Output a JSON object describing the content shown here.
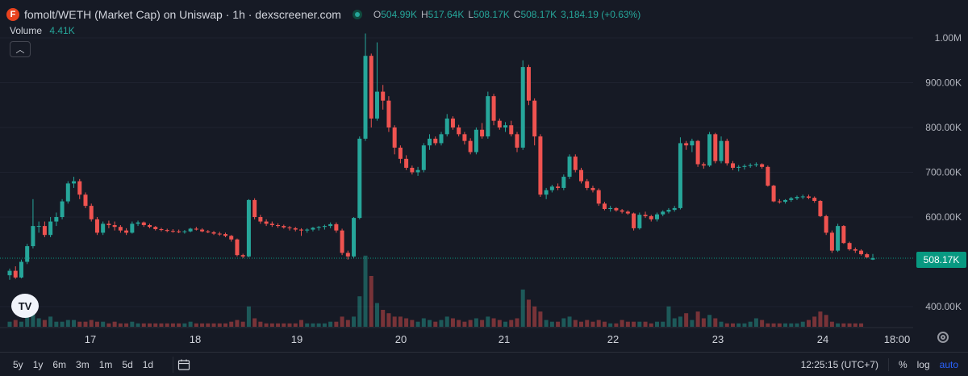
{
  "legend": {
    "pair_title": "fomolt/WETH (Market Cap) on Uniswap · 1h · dexscreener.com",
    "ohlc": {
      "o_label": "O",
      "o_value": "504.99K",
      "h_label": "H",
      "h_value": "517.64K",
      "l_label": "L",
      "l_value": "508.17K",
      "c_label": "C",
      "c_value": "508.17K",
      "change": "3,184.19 (+0.63%)"
    },
    "volume_label": "Volume",
    "volume_value": "4.41K",
    "collapse_icon": "chevron-up-icon",
    "logo_icon": "fomolt-logo-icon"
  },
  "price_axis": {
    "ticks": [
      "1.00M",
      "900.00K",
      "800.00K",
      "700.00K",
      "600.00K",
      "400.00K"
    ],
    "last_price_label": "508.17K"
  },
  "time_axis": {
    "ticks": [
      "17",
      "18",
      "19",
      "20",
      "21",
      "22",
      "23",
      "24",
      "18:00"
    ]
  },
  "bottom_bar": {
    "ranges": [
      "5y",
      "1y",
      "6m",
      "3m",
      "1m",
      "5d",
      "1d"
    ],
    "clock": "12:25:15 (UTC+7)",
    "percent": "%",
    "log": "log",
    "auto": "auto",
    "calendar_icon": "calendar-range-icon"
  },
  "colors": {
    "up": "#26a69a",
    "down": "#ef5350",
    "background": "#161a25",
    "grid": "#1f2330",
    "last_price": "#089981"
  },
  "chart_data": {
    "type": "candlestick",
    "title": "fomolt/WETH (Market Cap) on Uniswap · 1h · dexscreener.com",
    "interval": "1h",
    "y_unit": "market cap (USD)",
    "ylim": [
      370000,
      1030000
    ],
    "x_day_ticks": [
      "17",
      "18",
      "19",
      "20",
      "21",
      "22",
      "23",
      "24",
      "18:00"
    ],
    "last_close": 508170,
    "candles": [
      [
        470000,
        485000,
        460000,
        480000
      ],
      [
        480000,
        490000,
        462000,
        465000
      ],
      [
        465000,
        505000,
        463000,
        500000
      ],
      [
        500000,
        540000,
        495000,
        535000
      ],
      [
        535000,
        640000,
        530000,
        580000
      ],
      [
        580000,
        590000,
        565000,
        580000
      ],
      [
        580000,
        590000,
        555000,
        560000
      ],
      [
        560000,
        600000,
        555000,
        590000
      ],
      [
        590000,
        610000,
        580000,
        600000
      ],
      [
        600000,
        640000,
        595000,
        635000
      ],
      [
        635000,
        680000,
        630000,
        675000
      ],
      [
        675000,
        690000,
        665000,
        680000
      ],
      [
        680000,
        685000,
        640000,
        650000
      ],
      [
        650000,
        655000,
        620000,
        625000
      ],
      [
        625000,
        630000,
        590000,
        595000
      ],
      [
        595000,
        600000,
        560000,
        565000
      ],
      [
        565000,
        590000,
        560000,
        585000
      ],
      [
        585000,
        592000,
        575000,
        582000
      ],
      [
        582000,
        590000,
        570000,
        578000
      ],
      [
        578000,
        582000,
        565000,
        570000
      ],
      [
        570000,
        575000,
        560000,
        565000
      ],
      [
        565000,
        590000,
        563000,
        585000
      ],
      [
        585000,
        592000,
        580000,
        588000
      ],
      [
        588000,
        590000,
        578000,
        582000
      ],
      [
        582000,
        585000,
        575000,
        578000
      ],
      [
        578000,
        580000,
        570000,
        573000
      ],
      [
        573000,
        576000,
        568000,
        571000
      ],
      [
        571000,
        574000,
        566000,
        569000
      ],
      [
        569000,
        573000,
        565000,
        568000
      ],
      [
        568000,
        572000,
        564000,
        567000
      ],
      [
        567000,
        571000,
        563000,
        568000
      ],
      [
        568000,
        576000,
        566000,
        574000
      ],
      [
        574000,
        578000,
        570000,
        572000
      ],
      [
        572000,
        575000,
        566000,
        568000
      ],
      [
        568000,
        571000,
        564000,
        566000
      ],
      [
        566000,
        569000,
        560000,
        563000
      ],
      [
        563000,
        567000,
        558000,
        562000
      ],
      [
        562000,
        565000,
        555000,
        558000
      ],
      [
        558000,
        560000,
        545000,
        550000
      ],
      [
        550000,
        552000,
        512000,
        515000
      ],
      [
        515000,
        518000,
        508000,
        512000
      ],
      [
        512000,
        640000,
        510000,
        638000
      ],
      [
        638000,
        642000,
        595000,
        600000
      ],
      [
        600000,
        605000,
        585000,
        590000
      ],
      [
        590000,
        595000,
        580000,
        585000
      ],
      [
        585000,
        590000,
        578000,
        582000
      ],
      [
        582000,
        586000,
        576000,
        580000
      ],
      [
        580000,
        583000,
        574000,
        577000
      ],
      [
        577000,
        580000,
        570000,
        575000
      ],
      [
        575000,
        578000,
        568000,
        572000
      ],
      [
        572000,
        575000,
        558000,
        570000
      ],
      [
        570000,
        575000,
        565000,
        572000
      ],
      [
        572000,
        578000,
        568000,
        576000
      ],
      [
        576000,
        580000,
        570000,
        578000
      ],
      [
        578000,
        583000,
        572000,
        580000
      ],
      [
        580000,
        588000,
        575000,
        584000
      ],
      [
        584000,
        588000,
        565000,
        570000
      ],
      [
        570000,
        574000,
        515000,
        520000
      ],
      [
        520000,
        525000,
        505000,
        512000
      ],
      [
        512000,
        600000,
        508000,
        598000
      ],
      [
        598000,
        780000,
        595000,
        775000
      ],
      [
        775000,
        1010000,
        770000,
        960000
      ],
      [
        960000,
        965000,
        800000,
        820000
      ],
      [
        820000,
        990000,
        815000,
        880000
      ],
      [
        880000,
        895000,
        840000,
        860000
      ],
      [
        860000,
        870000,
        790000,
        800000
      ],
      [
        800000,
        805000,
        740000,
        755000
      ],
      [
        755000,
        760000,
        720000,
        730000
      ],
      [
        730000,
        738000,
        705000,
        710000
      ],
      [
        710000,
        715000,
        695000,
        700000
      ],
      [
        700000,
        712000,
        692000,
        705000
      ],
      [
        705000,
        765000,
        700000,
        760000
      ],
      [
        760000,
        785000,
        750000,
        775000
      ],
      [
        775000,
        780000,
        760000,
        765000
      ],
      [
        765000,
        790000,
        760000,
        785000
      ],
      [
        785000,
        830000,
        780000,
        820000
      ],
      [
        820000,
        825000,
        795000,
        800000
      ],
      [
        800000,
        806000,
        780000,
        785000
      ],
      [
        785000,
        790000,
        762000,
        770000
      ],
      [
        770000,
        776000,
        740000,
        745000
      ],
      [
        745000,
        800000,
        740000,
        795000
      ],
      [
        795000,
        810000,
        775000,
        780000
      ],
      [
        780000,
        880000,
        775000,
        870000
      ],
      [
        870000,
        875000,
        805000,
        815000
      ],
      [
        815000,
        820000,
        795000,
        800000
      ],
      [
        800000,
        812000,
        790000,
        805000
      ],
      [
        805000,
        815000,
        780000,
        785000
      ],
      [
        785000,
        790000,
        745000,
        755000
      ],
      [
        755000,
        950000,
        750000,
        935000
      ],
      [
        935000,
        940000,
        850000,
        860000
      ],
      [
        860000,
        865000,
        760000,
        780000
      ],
      [
        780000,
        785000,
        645000,
        650000
      ],
      [
        650000,
        665000,
        640000,
        660000
      ],
      [
        660000,
        672000,
        655000,
        668000
      ],
      [
        668000,
        675000,
        660000,
        665000
      ],
      [
        665000,
        695000,
        660000,
        690000
      ],
      [
        690000,
        740000,
        685000,
        735000
      ],
      [
        735000,
        740000,
        700000,
        705000
      ],
      [
        705000,
        710000,
        675000,
        680000
      ],
      [
        680000,
        685000,
        660000,
        665000
      ],
      [
        665000,
        670000,
        655000,
        660000
      ],
      [
        660000,
        664000,
        625000,
        630000
      ],
      [
        630000,
        634000,
        615000,
        618000
      ],
      [
        618000,
        625000,
        612000,
        620000
      ],
      [
        620000,
        622000,
        612000,
        615000
      ],
      [
        615000,
        618000,
        608000,
        612000
      ],
      [
        612000,
        615000,
        605000,
        608000
      ],
      [
        608000,
        610000,
        570000,
        575000
      ],
      [
        575000,
        610000,
        572000,
        605000
      ],
      [
        605000,
        612000,
        598000,
        602000
      ],
      [
        602000,
        605000,
        590000,
        595000
      ],
      [
        595000,
        610000,
        590000,
        606000
      ],
      [
        606000,
        615000,
        602000,
        612000
      ],
      [
        612000,
        620000,
        608000,
        616000
      ],
      [
        616000,
        625000,
        612000,
        620000
      ],
      [
        620000,
        778000,
        617000,
        765000
      ],
      [
        765000,
        770000,
        750000,
        760000
      ],
      [
        760000,
        775000,
        745000,
        770000
      ],
      [
        770000,
        772000,
        712000,
        718000
      ],
      [
        718000,
        722000,
        708000,
        715000
      ],
      [
        715000,
        790000,
        712000,
        785000
      ],
      [
        785000,
        788000,
        720000,
        725000
      ],
      [
        725000,
        780000,
        720000,
        770000
      ],
      [
        770000,
        775000,
        715000,
        720000
      ],
      [
        720000,
        725000,
        705000,
        710000
      ],
      [
        710000,
        716000,
        702000,
        712000
      ],
      [
        712000,
        718000,
        706000,
        714000
      ],
      [
        714000,
        720000,
        710000,
        716000
      ],
      [
        716000,
        722000,
        712000,
        718000
      ],
      [
        718000,
        720000,
        708000,
        712000
      ],
      [
        712000,
        715000,
        668000,
        670000
      ],
      [
        670000,
        672000,
        633000,
        635000
      ],
      [
        635000,
        640000,
        630000,
        634000
      ],
      [
        634000,
        640000,
        630000,
        638000
      ],
      [
        638000,
        645000,
        634000,
        642000
      ],
      [
        642000,
        648000,
        638000,
        645000
      ],
      [
        645000,
        650000,
        640000,
        646000
      ],
      [
        646000,
        650000,
        640000,
        643000
      ],
      [
        643000,
        646000,
        632000,
        636000
      ],
      [
        636000,
        638000,
        600000,
        602000
      ],
      [
        602000,
        605000,
        560000,
        565000
      ],
      [
        565000,
        570000,
        520000,
        525000
      ],
      [
        525000,
        585000,
        522000,
        580000
      ],
      [
        580000,
        582000,
        540000,
        542000
      ],
      [
        542000,
        545000,
        525000,
        528000
      ],
      [
        528000,
        532000,
        520000,
        525000
      ],
      [
        525000,
        528000,
        514000,
        517000
      ],
      [
        517000,
        520000,
        508000,
        510000
      ],
      [
        504990,
        517640,
        504000,
        508170
      ]
    ],
    "volumes": [
      3,
      4,
      3,
      6,
      12,
      5,
      4,
      6,
      3,
      3,
      4,
      4,
      3,
      3,
      4,
      3,
      3,
      2,
      3,
      2,
      2,
      3,
      2,
      2,
      2,
      2,
      2,
      2,
      2,
      2,
      2,
      3,
      2,
      2,
      2,
      2,
      2,
      2,
      3,
      4,
      3,
      12,
      5,
      3,
      2,
      2,
      2,
      2,
      2,
      2,
      4,
      2,
      2,
      2,
      2,
      3,
      3,
      6,
      4,
      6,
      18,
      42,
      30,
      14,
      10,
      8,
      6,
      6,
      5,
      4,
      3,
      5,
      4,
      3,
      4,
      6,
      5,
      4,
      3,
      4,
      5,
      4,
      6,
      5,
      4,
      3,
      4,
      5,
      22,
      16,
      12,
      9,
      4,
      3,
      3,
      5,
      6,
      4,
      3,
      4,
      3,
      4,
      3,
      2,
      2,
      4,
      3,
      3,
      3,
      3,
      2,
      3,
      3,
      12,
      5,
      6,
      8,
      4,
      9,
      5,
      7,
      5,
      3,
      2,
      2,
      2,
      2,
      3,
      5,
      4,
      2,
      2,
      2,
      2,
      2,
      2,
      3,
      4,
      6,
      9,
      7,
      3,
      2,
      2,
      2,
      2,
      2
    ]
  }
}
